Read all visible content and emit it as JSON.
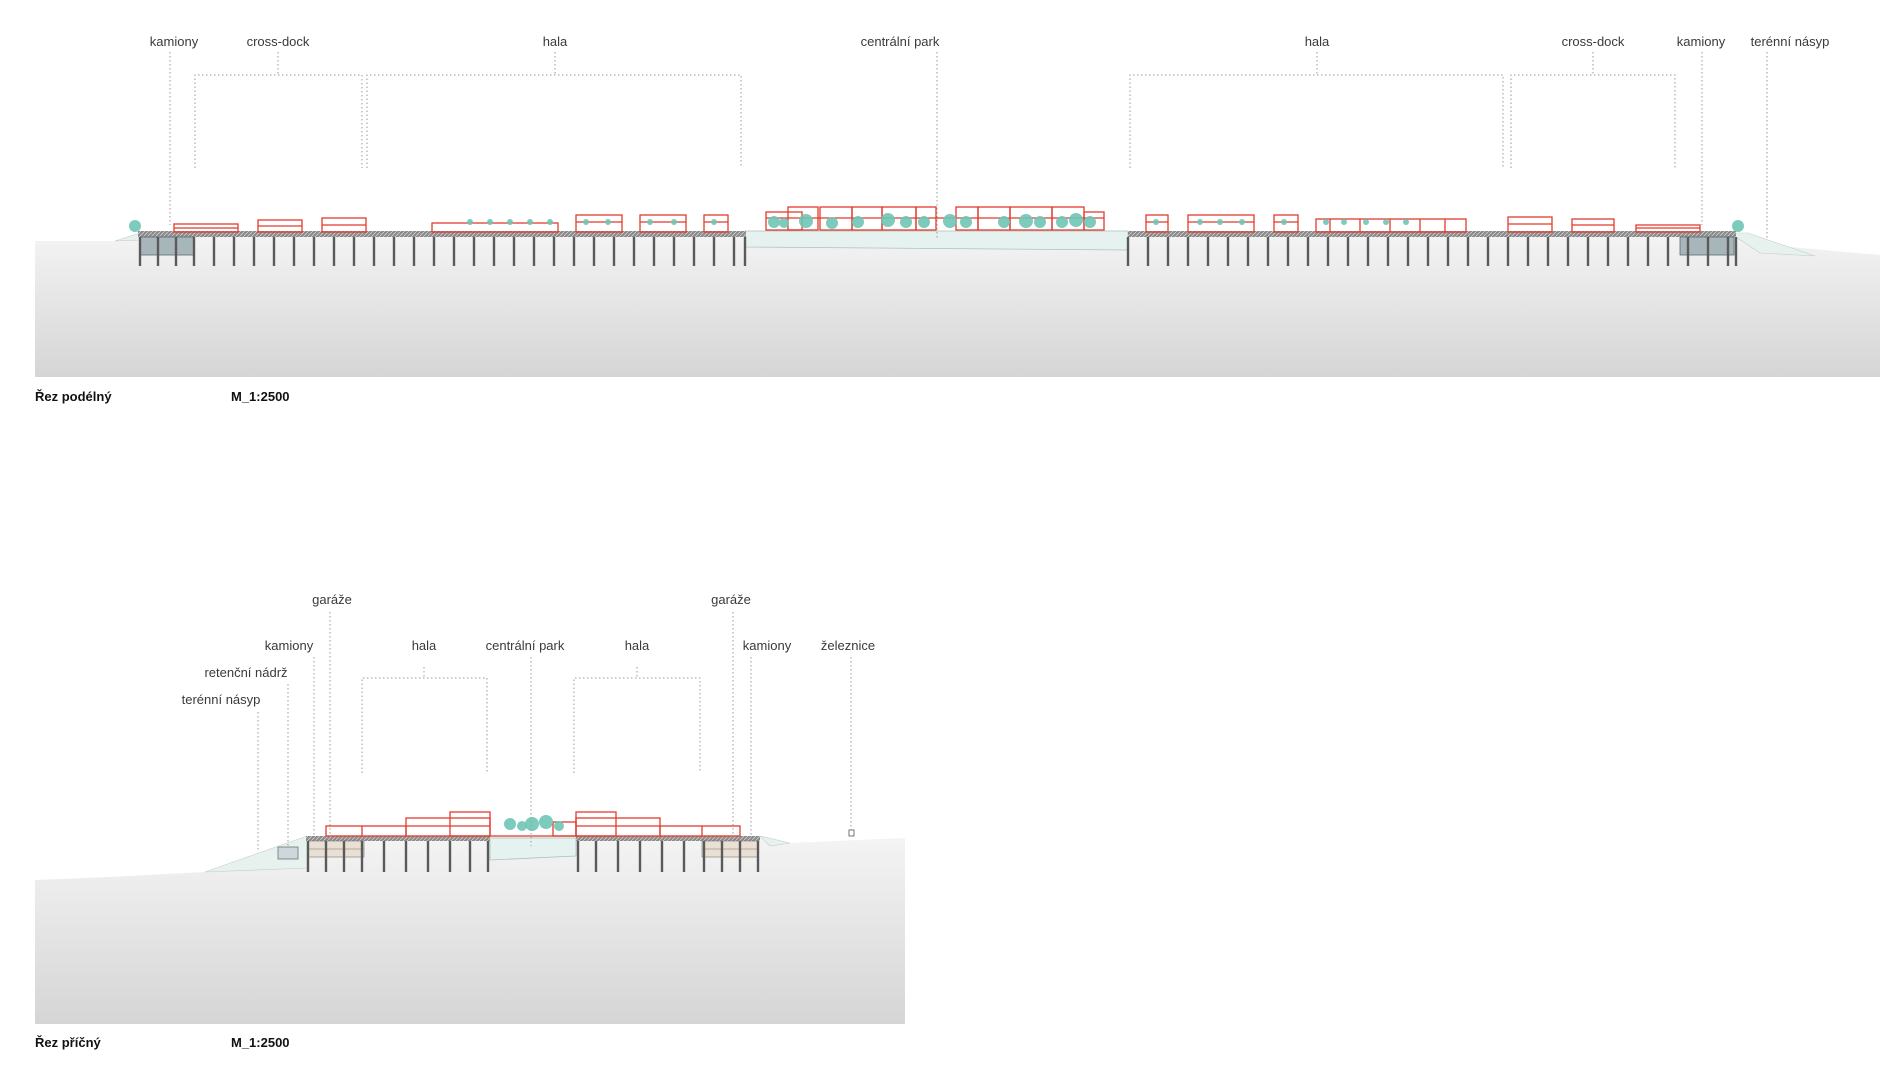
{
  "colors": {
    "ground_top": "#f3f3f3",
    "ground_bottom": "#d6d6d6",
    "park": "#e6f2ef",
    "building_outline": "#e23b2e",
    "tree": "#6fc5b5",
    "structure": "#5a5a5a",
    "leader": "#9a9a9a"
  },
  "longitudinal": {
    "caption": "Řez podélný",
    "scale": "M_1:2500",
    "labels": {
      "kamiony_left": "kamiony",
      "crossdock_left": "cross-dock",
      "hala_left": "hala",
      "park": "centrální park",
      "hala_right": "hala",
      "crossdock_right": "cross-dock",
      "kamiony_right": "kamiony",
      "nasyp": "terénní násyp"
    }
  },
  "transverse": {
    "caption": "Řez příčný",
    "scale": "M_1:2500",
    "labels": {
      "garaze_left": "garáže",
      "kamiony_left": "kamiony",
      "retencni": "retenční nádrž",
      "nasyp": "terénní násyp",
      "hala_left": "hala",
      "park": "centrální park",
      "hala_right": "hala",
      "garaze_right": "garáže",
      "kamiony_right": "kamiony",
      "zeleznice": "železnice"
    }
  }
}
